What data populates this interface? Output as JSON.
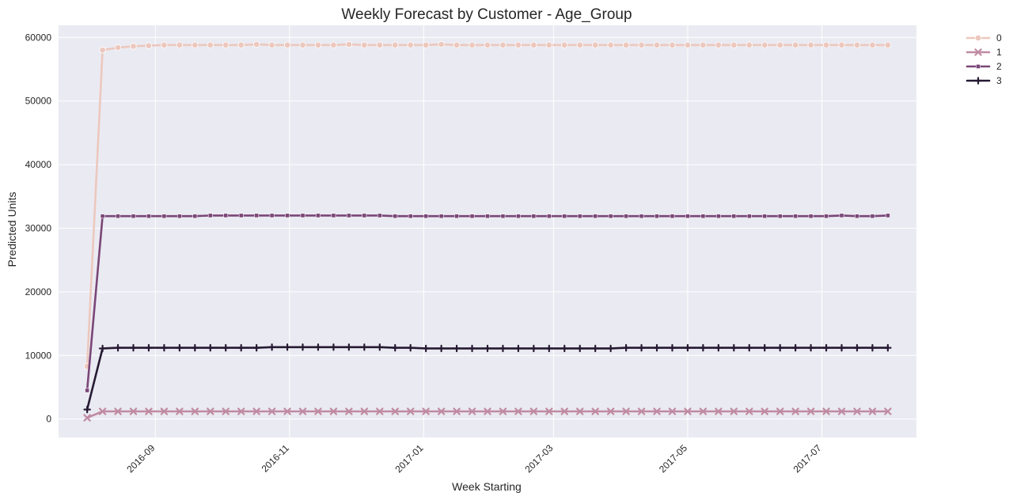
{
  "chart_data": {
    "type": "line",
    "title": "Weekly Forecast by Customer - Age_Group",
    "xlabel": "Week Starting",
    "ylabel": "Predicted Units",
    "x_start": "2016-08-01",
    "x_count": 53,
    "x_step_days": 7,
    "xlim": [
      "2016-07-19",
      "2017-08-13"
    ],
    "ylim": [
      -2900,
      61900
    ],
    "x_ticks": [
      "2016-09",
      "2016-11",
      "2017-01",
      "2017-03",
      "2017-05",
      "2017-07"
    ],
    "y_ticks": [
      0,
      10000,
      20000,
      30000,
      40000,
      50000,
      60000
    ],
    "grid": true,
    "legend_position": "outside-top-right",
    "series": [
      {
        "name": "0",
        "color": "#ecc8be",
        "marker": "circle",
        "values": [
          8300,
          58000,
          58400,
          58600,
          58700,
          58800,
          58800,
          58800,
          58800,
          58800,
          58800,
          58900,
          58800,
          58800,
          58800,
          58800,
          58800,
          58900,
          58800,
          58800,
          58800,
          58800,
          58800,
          58900,
          58800,
          58800,
          58800,
          58800,
          58800,
          58800,
          58800,
          58800,
          58800,
          58800,
          58800,
          58800,
          58800,
          58800,
          58800,
          58800,
          58800,
          58800,
          58800,
          58800,
          58800,
          58800,
          58800,
          58800,
          58800,
          58800,
          58800,
          58800,
          58800
        ]
      },
      {
        "name": "1",
        "color": "#c08ba2",
        "marker": "x",
        "values": [
          200,
          1200,
          1200,
          1200,
          1200,
          1200,
          1200,
          1200,
          1200,
          1200,
          1200,
          1200,
          1200,
          1200,
          1200,
          1200,
          1200,
          1200,
          1200,
          1200,
          1200,
          1200,
          1200,
          1200,
          1200,
          1200,
          1200,
          1200,
          1200,
          1200,
          1200,
          1200,
          1200,
          1200,
          1200,
          1200,
          1200,
          1200,
          1200,
          1200,
          1200,
          1200,
          1200,
          1200,
          1200,
          1200,
          1200,
          1200,
          1200,
          1200,
          1200,
          1200,
          1200
        ]
      },
      {
        "name": "2",
        "color": "#7a4677",
        "marker": "square",
        "values": [
          4500,
          31900,
          31900,
          31900,
          31900,
          31900,
          31900,
          31900,
          32000,
          32000,
          32000,
          32000,
          32000,
          32000,
          32000,
          32000,
          32000,
          32000,
          32000,
          32000,
          31900,
          31900,
          31900,
          31900,
          31900,
          31900,
          31900,
          31900,
          31900,
          31900,
          31900,
          31900,
          31900,
          31900,
          31900,
          31900,
          31900,
          31900,
          31900,
          31900,
          31900,
          31900,
          31900,
          31900,
          31900,
          31900,
          31900,
          31900,
          31900,
          32000,
          31900,
          31900,
          32000
        ]
      },
      {
        "name": "3",
        "color": "#261a32",
        "marker": "plus",
        "values": [
          1500,
          11100,
          11200,
          11200,
          11200,
          11200,
          11200,
          11200,
          11200,
          11200,
          11200,
          11200,
          11300,
          11300,
          11300,
          11300,
          11300,
          11300,
          11300,
          11300,
          11200,
          11200,
          11100,
          11100,
          11100,
          11100,
          11100,
          11100,
          11100,
          11100,
          11100,
          11100,
          11100,
          11100,
          11100,
          11200,
          11200,
          11200,
          11200,
          11200,
          11200,
          11200,
          11200,
          11200,
          11200,
          11200,
          11200,
          11200,
          11200,
          11200,
          11200,
          11200,
          11200
        ]
      }
    ]
  },
  "colors": {
    "plot_background": "#eaeaf2",
    "grid": "#ffffff"
  }
}
